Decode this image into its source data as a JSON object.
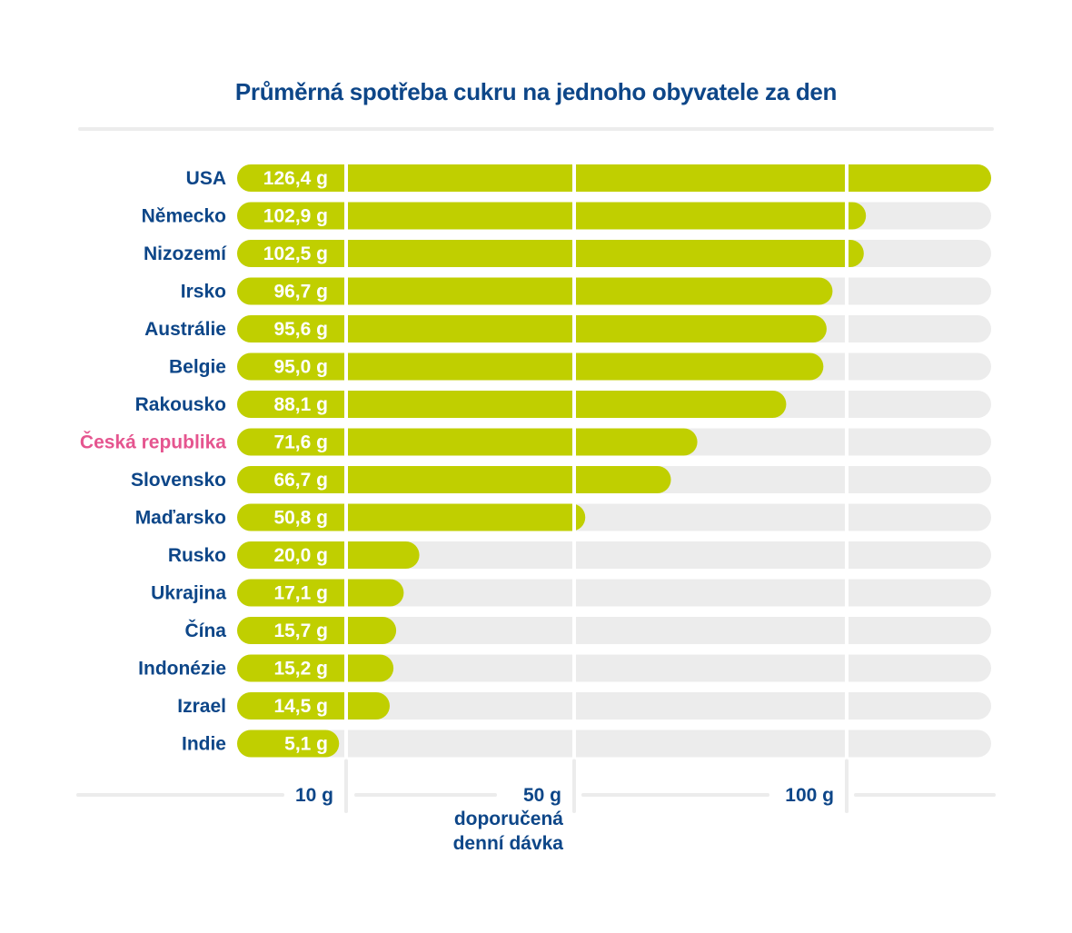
{
  "chart_data": {
    "type": "bar",
    "orientation": "horizontal",
    "title": "Průměrná spotřeba cukru na jednoho obyvatele za den",
    "unit": "g",
    "categories": [
      "USA",
      "Německo",
      "Nizozemí",
      "Irsko",
      "Austrálie",
      "Belgie",
      "Rakousko",
      "Česká republika",
      "Slovensko",
      "Maďarsko",
      "Rusko",
      "Ukrajina",
      "Čína",
      "Indonézie",
      "Izrael",
      "Indie"
    ],
    "values": [
      126.4,
      102.9,
      102.5,
      96.7,
      95.6,
      95.0,
      88.1,
      71.6,
      66.7,
      50.8,
      20.0,
      17.1,
      15.7,
      15.2,
      14.5,
      5.1
    ],
    "value_labels": [
      "126,4 g",
      "102,9 g",
      "102,5 g",
      "96,7 g",
      "95,6 g",
      "95,0 g",
      "88,1 g",
      "71,6 g",
      "66,7 g",
      "50,8 g",
      "20,0 g",
      "17,1 g",
      "15,7 g",
      "15,2 g",
      "14,5 g",
      "5,1 g"
    ],
    "highlight": "Česká republika",
    "xlim": [
      0,
      126.4
    ],
    "ticks": [
      {
        "value": 10,
        "label": "10 g"
      },
      {
        "value": 50,
        "label": "50 g",
        "note_lines": [
          "doporučená",
          "denní dávka"
        ]
      },
      {
        "value": 100,
        "label": "100 g"
      }
    ],
    "grid": true,
    "colors": {
      "bar": "#c0cf00",
      "track": "#ececec",
      "label": "#0d4688",
      "highlight_label": "#e5558f",
      "value_text": "#ffffff"
    }
  }
}
